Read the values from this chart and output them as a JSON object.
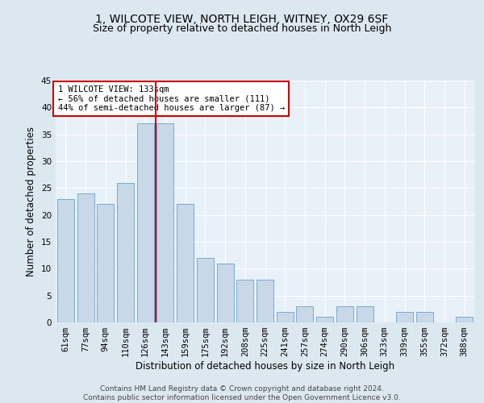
{
  "title": "1, WILCOTE VIEW, NORTH LEIGH, WITNEY, OX29 6SF",
  "subtitle": "Size of property relative to detached houses in North Leigh",
  "xlabel": "Distribution of detached houses by size in North Leigh",
  "ylabel": "Number of detached properties",
  "bar_labels": [
    "61sqm",
    "77sqm",
    "94sqm",
    "110sqm",
    "126sqm",
    "143sqm",
    "159sqm",
    "175sqm",
    "192sqm",
    "208sqm",
    "225sqm",
    "241sqm",
    "257sqm",
    "274sqm",
    "290sqm",
    "306sqm",
    "323sqm",
    "339sqm",
    "355sqm",
    "372sqm",
    "388sqm"
  ],
  "bar_values": [
    23,
    24,
    22,
    26,
    37,
    37,
    22,
    12,
    11,
    8,
    8,
    2,
    3,
    1,
    3,
    3,
    0,
    2,
    2,
    0,
    1
  ],
  "bar_color": "#c8d8e8",
  "bar_edge_color": "#7aabcc",
  "vline_x": 4.5,
  "vline_color": "#cc0000",
  "annotation_text": "1 WILCOTE VIEW: 133sqm\n← 56% of detached houses are smaller (111)\n44% of semi-detached houses are larger (87) →",
  "annotation_box_facecolor": "#ffffff",
  "annotation_box_edgecolor": "#cc0000",
  "ylim": [
    0,
    45
  ],
  "yticks": [
    0,
    5,
    10,
    15,
    20,
    25,
    30,
    35,
    40,
    45
  ],
  "bg_color": "#dce8f0",
  "plot_bg_color": "#e8f0f8",
  "footer_text": "Contains HM Land Registry data © Crown copyright and database right 2024.\nContains public sector information licensed under the Open Government Licence v3.0.",
  "title_fontsize": 10,
  "subtitle_fontsize": 9,
  "xlabel_fontsize": 8.5,
  "ylabel_fontsize": 8.5,
  "tick_fontsize": 7.5,
  "annotation_fontsize": 7.5,
  "footer_fontsize": 6.5
}
